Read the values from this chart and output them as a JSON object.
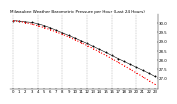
{
  "title": "Milwaukee Weather Barometric Pressure per Hour (Last 24 Hours)",
  "background_color": "#ffffff",
  "hours": [
    0,
    1,
    2,
    3,
    4,
    5,
    6,
    7,
    8,
    9,
    10,
    11,
    12,
    13,
    14,
    15,
    16,
    17,
    18,
    19,
    20,
    21,
    22,
    23
  ],
  "pressure": [
    30.15,
    30.12,
    30.08,
    30.05,
    29.98,
    29.88,
    29.76,
    29.62,
    29.48,
    29.34,
    29.2,
    29.05,
    28.9,
    28.74,
    28.58,
    28.42,
    28.25,
    28.08,
    27.92,
    27.76,
    27.6,
    27.44,
    27.28,
    27.1
  ],
  "trend": [
    30.15,
    30.1,
    30.04,
    29.96,
    29.87,
    29.77,
    29.66,
    29.53,
    29.4,
    29.26,
    29.11,
    28.95,
    28.79,
    28.62,
    28.44,
    28.26,
    28.07,
    27.88,
    27.69,
    27.49,
    27.29,
    27.09,
    26.88,
    26.67
  ],
  "ylim": [
    26.4,
    30.5
  ],
  "ytick_values": [
    27.0,
    27.5,
    28.0,
    28.5,
    29.0,
    29.5,
    30.0
  ],
  "grid_color": "#888888",
  "dot_color": "#000000",
  "trend_color": "#ff0000",
  "title_fontsize": 3.0,
  "tick_fontsize": 2.8,
  "grid_interval": 4
}
